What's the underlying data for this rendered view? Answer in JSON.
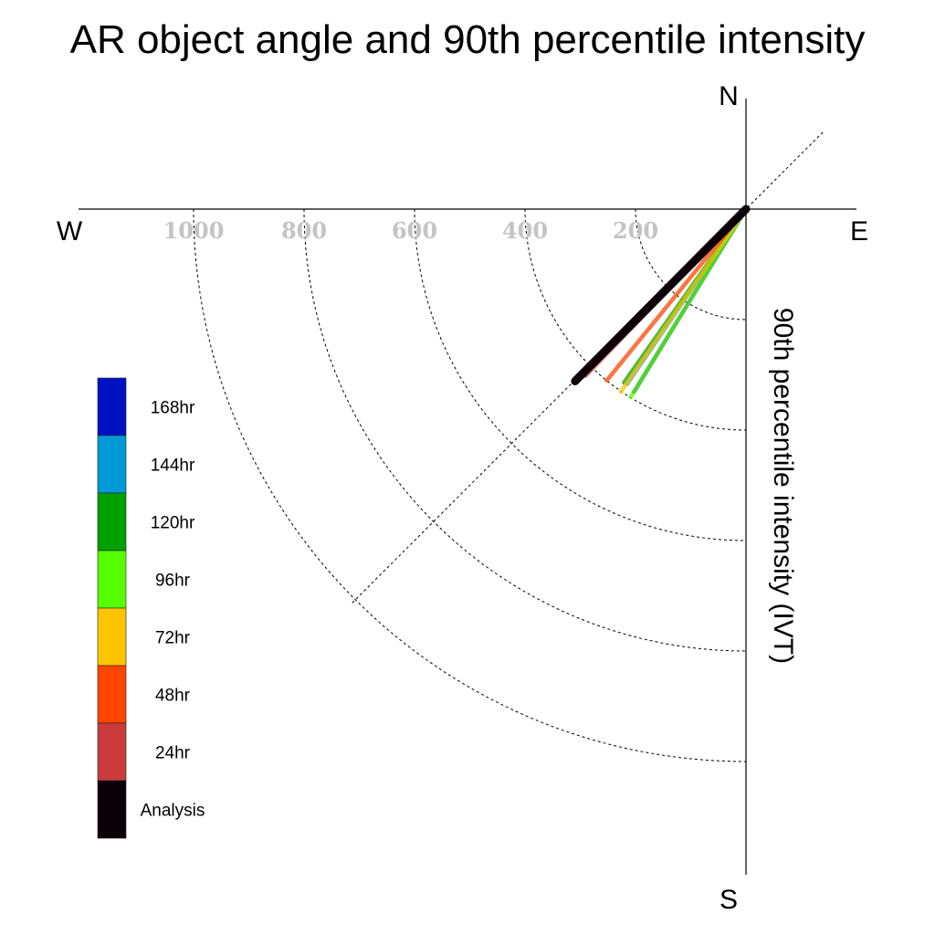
{
  "chart_data": {
    "type": "polar-vector",
    "title": "AR object angle and 90th percentile intensity",
    "radial_label": "90th percentile intensity (IVT)",
    "compass": {
      "n": "N",
      "s": "S",
      "e": "E",
      "w": "W"
    },
    "radial_ticks": [
      200,
      400,
      600,
      800,
      1000
    ],
    "radial_tick_labels": [
      "200",
      "400",
      "600",
      "800",
      "1000"
    ],
    "radial_max": 1200,
    "series": [
      {
        "name": "168hr",
        "color": "#0011c4",
        "angle_deg": 211.5,
        "intensity": 388
      },
      {
        "name": "144hr",
        "color": "#009ad9",
        "angle_deg": 214.2,
        "intensity": 383
      },
      {
        "name": "120hr",
        "color": "#00a000",
        "angle_deg": 215.1,
        "intensity": 384
      },
      {
        "name": "96hr",
        "color": "#55ff00",
        "angle_deg": 211.5,
        "intensity": 399
      },
      {
        "name": "72hr",
        "color": "#ffc400",
        "angle_deg": 214.4,
        "intensity": 401
      },
      {
        "name": "48hr",
        "color": "#ff4400",
        "angle_deg": 219.1,
        "intensity": 400
      },
      {
        "name": "24hr",
        "color": "#cc3b3b",
        "angle_deg": 223.9,
        "intensity": 419
      },
      {
        "name": "Analysis",
        "color": "#0b0008",
        "angle_deg": 224.8,
        "intensity": 439
      }
    ]
  }
}
